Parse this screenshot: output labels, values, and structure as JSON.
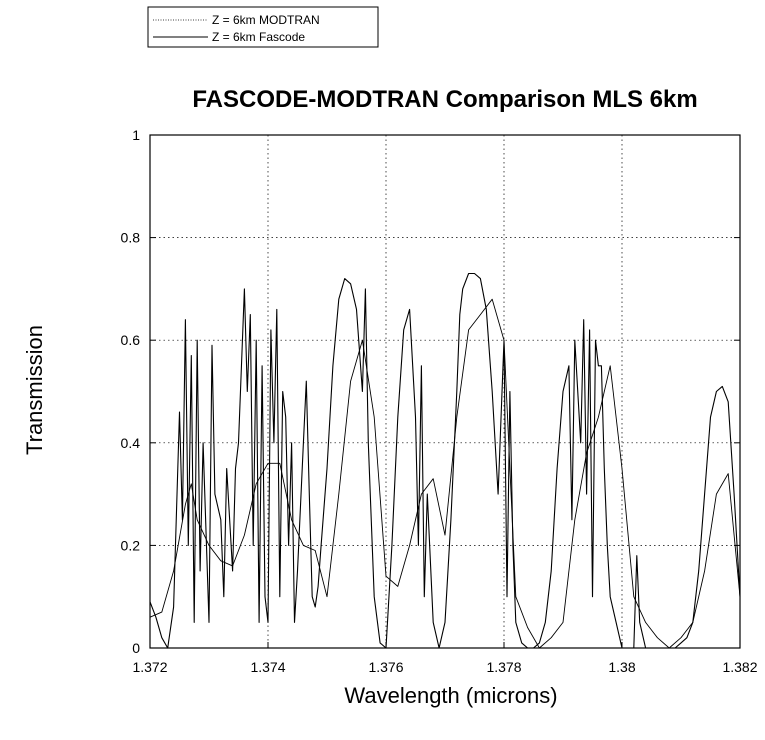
{
  "chart_data": {
    "type": "line",
    "title": "FASCODE-MODTRAN Comparison MLS 6km",
    "xlabel": "Wavelength (microns)",
    "ylabel": "Transmission",
    "xlim": [
      1.372,
      1.382
    ],
    "ylim": [
      0,
      1
    ],
    "grid": true,
    "legend_position": "top-left",
    "x_ticks": [
      "1.372",
      "1.374",
      "1.376",
      "1.378",
      "1.38",
      "1.382"
    ],
    "y_ticks": [
      "0",
      "0.2",
      "0.4",
      "0.6",
      "0.8",
      "1"
    ],
    "series": [
      {
        "name": "Z = 6km MODTRAN",
        "color": "#000000",
        "x": [
          1.372,
          1.3722,
          1.3724,
          1.3726,
          1.3727,
          1.3728,
          1.373,
          1.3732,
          1.3734,
          1.3736,
          1.3738,
          1.374,
          1.3742,
          1.3744,
          1.3746,
          1.3748,
          1.375,
          1.3752,
          1.3754,
          1.3756,
          1.3758,
          1.376,
          1.3762,
          1.3764,
          1.3766,
          1.3768,
          1.377,
          1.3772,
          1.3774,
          1.3776,
          1.3778,
          1.378,
          1.3782,
          1.3784,
          1.3786,
          1.3788,
          1.379,
          1.3792,
          1.3794,
          1.3796,
          1.3798,
          1.38,
          1.3802,
          1.3804,
          1.3806,
          1.3808,
          1.381,
          1.3812,
          1.3814,
          1.3816,
          1.3818,
          1.382
        ],
        "y": [
          0.06,
          0.07,
          0.15,
          0.28,
          0.32,
          0.25,
          0.2,
          0.17,
          0.16,
          0.22,
          0.32,
          0.36,
          0.36,
          0.25,
          0.2,
          0.19,
          0.1,
          0.3,
          0.52,
          0.6,
          0.45,
          0.14,
          0.12,
          0.2,
          0.3,
          0.33,
          0.22,
          0.45,
          0.62,
          0.65,
          0.68,
          0.6,
          0.1,
          0.04,
          0.0,
          0.02,
          0.05,
          0.25,
          0.38,
          0.45,
          0.55,
          0.35,
          0.1,
          0.05,
          0.02,
          0.0,
          0.02,
          0.05,
          0.15,
          0.3,
          0.34,
          0.1
        ]
      },
      {
        "name": "Z = 6km Fascode",
        "color": "#000000",
        "x": [
          1.372,
          1.3721,
          1.3722,
          1.3723,
          1.3724,
          1.3725,
          1.37255,
          1.3726,
          1.37265,
          1.3727,
          1.37275,
          1.3728,
          1.37285,
          1.3729,
          1.373,
          1.37305,
          1.3731,
          1.3732,
          1.37325,
          1.3733,
          1.3734,
          1.37345,
          1.3735,
          1.3736,
          1.37365,
          1.3737,
          1.37375,
          1.3738,
          1.37385,
          1.3739,
          1.37395,
          1.374,
          1.37405,
          1.3741,
          1.37415,
          1.3742,
          1.37425,
          1.3743,
          1.37435,
          1.3744,
          1.37445,
          1.3745,
          1.3746,
          1.37465,
          1.3747,
          1.37475,
          1.3748,
          1.37485,
          1.3749,
          1.375,
          1.3751,
          1.3752,
          1.3753,
          1.3754,
          1.3755,
          1.3756,
          1.37565,
          1.3757,
          1.3758,
          1.3759,
          1.376,
          1.3761,
          1.3762,
          1.3763,
          1.3764,
          1.3765,
          1.37655,
          1.3766,
          1.37665,
          1.3767,
          1.3768,
          1.3769,
          1.377,
          1.3771,
          1.3772,
          1.37725,
          1.3773,
          1.3774,
          1.3775,
          1.3776,
          1.3777,
          1.3778,
          1.3779,
          1.378,
          1.37805,
          1.3781,
          1.37815,
          1.3782,
          1.3783,
          1.3784,
          1.3785,
          1.3786,
          1.3787,
          1.3788,
          1.3789,
          1.379,
          1.3791,
          1.37915,
          1.3792,
          1.3793,
          1.37935,
          1.3794,
          1.37945,
          1.3795,
          1.37955,
          1.3796,
          1.37965,
          1.3797,
          1.37975,
          1.3798,
          1.3799,
          1.38,
          1.3801,
          1.3802,
          1.38025,
          1.3803,
          1.3804,
          1.3805,
          1.3806,
          1.3807,
          1.3808,
          1.3809,
          1.381,
          1.3811,
          1.3812,
          1.3813,
          1.3814,
          1.3815,
          1.3816,
          1.3817,
          1.3818,
          1.3819,
          1.382
        ],
        "y": [
          0.09,
          0.06,
          0.02,
          0.0,
          0.08,
          0.46,
          0.25,
          0.64,
          0.2,
          0.57,
          0.05,
          0.6,
          0.15,
          0.4,
          0.05,
          0.59,
          0.3,
          0.25,
          0.1,
          0.35,
          0.15,
          0.35,
          0.4,
          0.7,
          0.5,
          0.65,
          0.2,
          0.6,
          0.05,
          0.55,
          0.1,
          0.05,
          0.62,
          0.4,
          0.66,
          0.1,
          0.5,
          0.45,
          0.2,
          0.4,
          0.05,
          0.15,
          0.4,
          0.52,
          0.3,
          0.1,
          0.08,
          0.12,
          0.2,
          0.35,
          0.55,
          0.68,
          0.72,
          0.71,
          0.66,
          0.5,
          0.7,
          0.4,
          0.1,
          0.01,
          0.0,
          0.2,
          0.45,
          0.62,
          0.66,
          0.45,
          0.2,
          0.55,
          0.1,
          0.3,
          0.05,
          0.0,
          0.05,
          0.25,
          0.5,
          0.65,
          0.7,
          0.73,
          0.73,
          0.72,
          0.66,
          0.5,
          0.3,
          0.6,
          0.1,
          0.5,
          0.2,
          0.05,
          0.01,
          0.0,
          0.0,
          0.01,
          0.05,
          0.15,
          0.35,
          0.5,
          0.55,
          0.25,
          0.6,
          0.4,
          0.64,
          0.3,
          0.62,
          0.1,
          0.6,
          0.55,
          0.55,
          0.35,
          0.2,
          0.1,
          0.05,
          0.0,
          0.0,
          0.0,
          0.18,
          0.05,
          0.0,
          0.0,
          0.0,
          0.0,
          0.0,
          0.0,
          0.01,
          0.02,
          0.05,
          0.15,
          0.3,
          0.45,
          0.5,
          0.51,
          0.48,
          0.3,
          0.1
        ]
      }
    ]
  }
}
